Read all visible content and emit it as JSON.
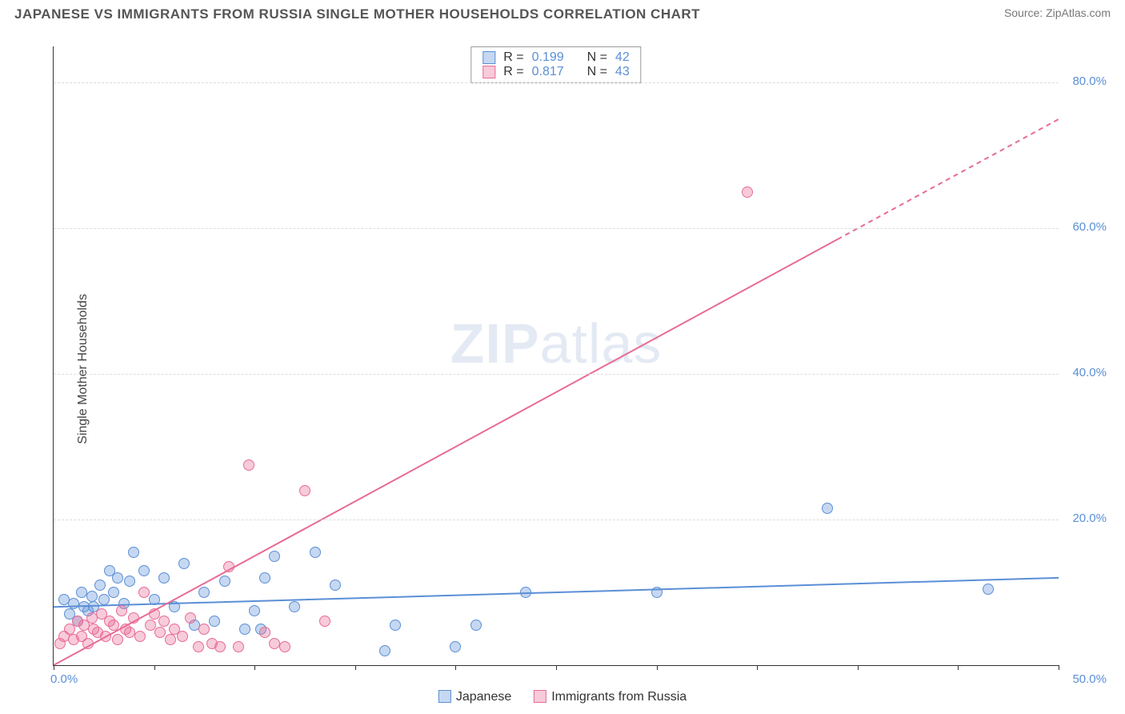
{
  "title": "JAPANESE VS IMMIGRANTS FROM RUSSIA SINGLE MOTHER HOUSEHOLDS CORRELATION CHART",
  "source": "Source: ZipAtlas.com",
  "ylabel": "Single Mother Households",
  "watermark_bold": "ZIP",
  "watermark_rest": "atlas",
  "chart": {
    "type": "scatter",
    "background_color": "#ffffff",
    "grid_color": "#dddddd",
    "axis_color": "#333333",
    "xlim": [
      0,
      50
    ],
    "ylim": [
      0,
      85
    ],
    "xtick_values": [
      0,
      5,
      10,
      15,
      20,
      25,
      30,
      35,
      40,
      45,
      50
    ],
    "xtick_labels": {
      "0": "0.0%",
      "50": "50.0%"
    },
    "ytick_values": [
      20,
      40,
      60,
      80
    ],
    "ytick_labels": {
      "20": "20.0%",
      "40": "40.0%",
      "60": "60.0%",
      "80": "80.0%"
    },
    "label_color": "#5b8fd6",
    "label_fontsize": 15,
    "marker_radius": 7,
    "marker_fill_opacity": 0.35,
    "series": [
      {
        "name": "Japanese",
        "color": "#5b8fd6",
        "fill": "rgba(91,143,214,0.35)",
        "stroke": "#5b8fd6",
        "r_value": "0.199",
        "n_value": "42",
        "regression": {
          "x1": 0,
          "y1": 8.0,
          "x2": 50,
          "y2": 12.0,
          "solid_until_x": 50
        },
        "points": [
          [
            0.5,
            9
          ],
          [
            0.8,
            7
          ],
          [
            1.0,
            8.5
          ],
          [
            1.2,
            6
          ],
          [
            1.4,
            10
          ],
          [
            1.5,
            8
          ],
          [
            1.7,
            7.5
          ],
          [
            1.9,
            9.5
          ],
          [
            2.0,
            8
          ],
          [
            2.3,
            11
          ],
          [
            2.5,
            9
          ],
          [
            2.8,
            13
          ],
          [
            3.0,
            10
          ],
          [
            3.2,
            12
          ],
          [
            3.5,
            8.5
          ],
          [
            3.8,
            11.5
          ],
          [
            4.0,
            15.5
          ],
          [
            4.5,
            13
          ],
          [
            5.0,
            9
          ],
          [
            5.5,
            12
          ],
          [
            6.0,
            8
          ],
          [
            6.5,
            14
          ],
          [
            7.0,
            5.5
          ],
          [
            7.5,
            10
          ],
          [
            8.0,
            6
          ],
          [
            8.5,
            11.5
          ],
          [
            9.5,
            5
          ],
          [
            10.0,
            7.5
          ],
          [
            10.3,
            5.0
          ],
          [
            10.5,
            12
          ],
          [
            11.0,
            15
          ],
          [
            12.0,
            8
          ],
          [
            13.0,
            15.5
          ],
          [
            14.0,
            11
          ],
          [
            16.5,
            2
          ],
          [
            17.0,
            5.5
          ],
          [
            20.0,
            2.5
          ],
          [
            21.0,
            5.5
          ],
          [
            23.5,
            10
          ],
          [
            30.0,
            10
          ],
          [
            38.5,
            21.5
          ],
          [
            46.5,
            10.5
          ]
        ]
      },
      {
        "name": "Immigrants from Russia",
        "color": "#e86b94",
        "fill": "rgba(232,107,148,0.35)",
        "stroke": "#e86b94",
        "r_value": "0.817",
        "n_value": "43",
        "regression": {
          "x1": 0,
          "y1": 0.0,
          "x2": 50,
          "y2": 75.0,
          "solid_until_x": 39
        },
        "points": [
          [
            0.3,
            3
          ],
          [
            0.5,
            4
          ],
          [
            0.8,
            5
          ],
          [
            1.0,
            3.5
          ],
          [
            1.2,
            6
          ],
          [
            1.4,
            4
          ],
          [
            1.5,
            5.5
          ],
          [
            1.7,
            3
          ],
          [
            1.9,
            6.5
          ],
          [
            2.0,
            5
          ],
          [
            2.2,
            4.5
          ],
          [
            2.4,
            7
          ],
          [
            2.6,
            4
          ],
          [
            2.8,
            6
          ],
          [
            3.0,
            5.5
          ],
          [
            3.2,
            3.5
          ],
          [
            3.4,
            7.5
          ],
          [
            3.6,
            5
          ],
          [
            3.8,
            4.5
          ],
          [
            4.0,
            6.5
          ],
          [
            4.3,
            4
          ],
          [
            4.5,
            10
          ],
          [
            4.8,
            5.5
          ],
          [
            5.0,
            7
          ],
          [
            5.3,
            4.5
          ],
          [
            5.5,
            6
          ],
          [
            5.8,
            3.5
          ],
          [
            6.0,
            5
          ],
          [
            6.4,
            4
          ],
          [
            6.8,
            6.5
          ],
          [
            7.2,
            2.5
          ],
          [
            7.5,
            5
          ],
          [
            7.9,
            3
          ],
          [
            8.3,
            2.5
          ],
          [
            8.7,
            13.5
          ],
          [
            9.2,
            2.5
          ],
          [
            9.7,
            27.5
          ],
          [
            10.5,
            4.5
          ],
          [
            11.0,
            3
          ],
          [
            11.5,
            2.5
          ],
          [
            12.5,
            24
          ],
          [
            13.5,
            6
          ],
          [
            34.5,
            65
          ]
        ]
      }
    ]
  },
  "legend_top": {
    "r_label": "R =",
    "n_label": "N ="
  },
  "legend_bottom": [
    {
      "label": "Japanese",
      "fill": "rgba(91,143,214,0.35)",
      "stroke": "#5b8fd6"
    },
    {
      "label": "Immigrants from Russia",
      "fill": "rgba(232,107,148,0.35)",
      "stroke": "#e86b94"
    }
  ]
}
